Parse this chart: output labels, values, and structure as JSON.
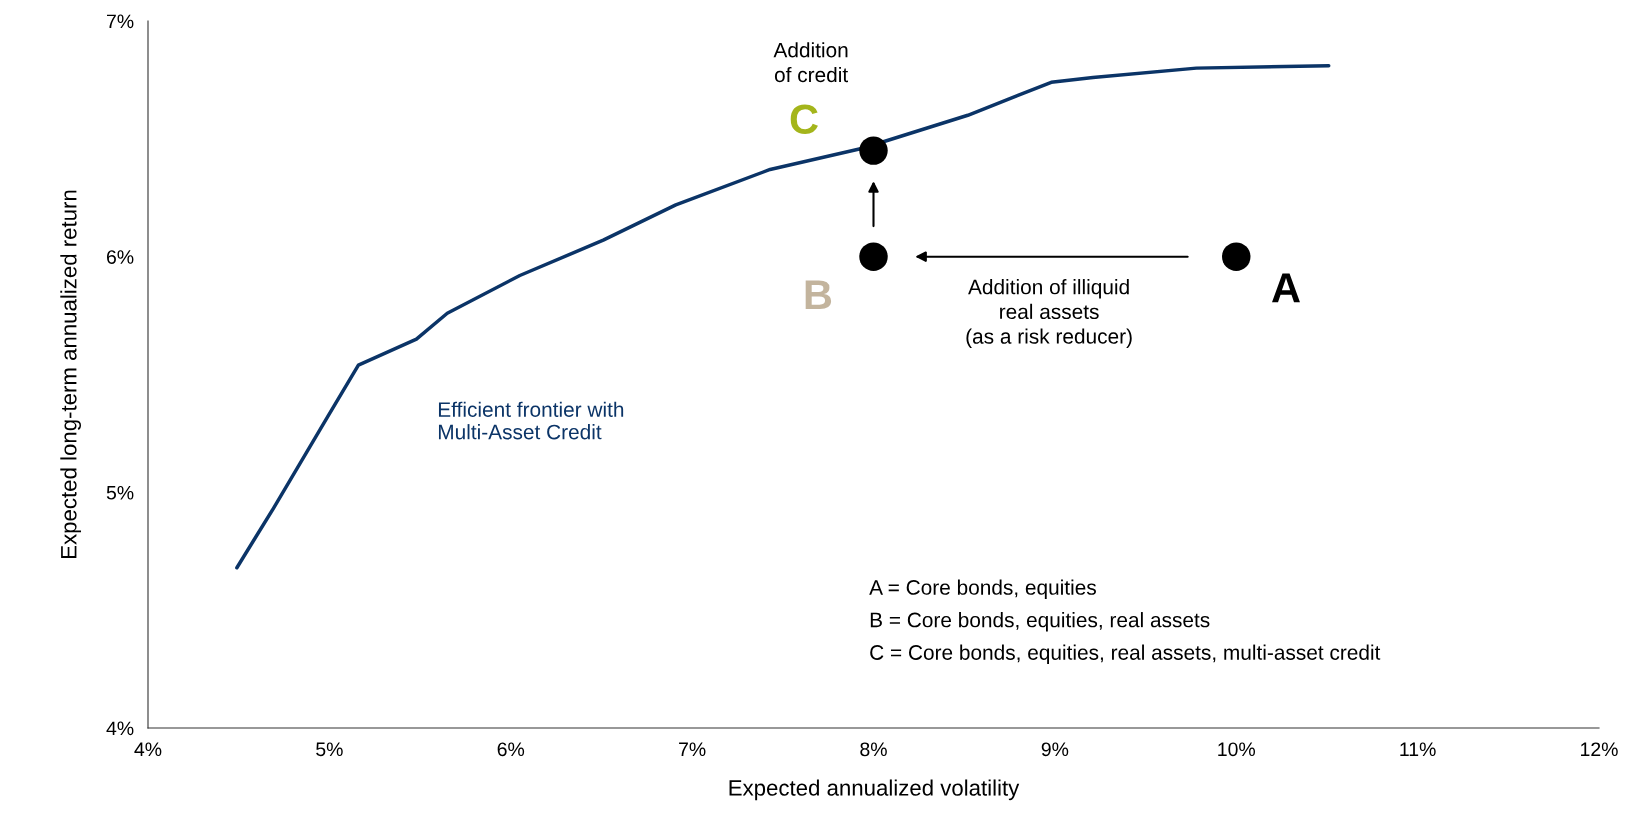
{
  "chart_data": {
    "type": "line",
    "xlabel": "Expected annualized volatility",
    "ylabel": "Expected long-term annualized return",
    "series": [
      {
        "name": "Efficient frontier with\nMulti-Asset Credit",
        "color": "#0b3467",
        "x": [
          4.49,
          4.69,
          4.99,
          5.16,
          5.48,
          5.65,
          6.05,
          6.51,
          6.91,
          7.43,
          7.94,
          8.52,
          8.98,
          9.21,
          9.78,
          10.51
        ],
        "values": [
          4.68,
          4.93,
          5.32,
          5.54,
          5.65,
          5.76,
          5.92,
          6.07,
          6.22,
          6.37,
          6.46,
          6.6,
          6.74,
          6.76,
          6.8,
          6.81
        ]
      },
      {
        "type": "scatter",
        "color": "#000000",
        "x": [
          10,
          8,
          8
        ],
        "values": [
          6,
          6,
          6.45
        ],
        "value_labels": [
          "A",
          "B",
          "C"
        ]
      }
    ],
    "xlim": [
      4,
      12
    ],
    "xticks": [
      {
        "value": 4,
        "label": "4%"
      },
      {
        "value": 5,
        "label": "5%"
      },
      {
        "value": 6,
        "label": "6%"
      },
      {
        "value": 7,
        "label": "7%"
      },
      {
        "value": 8,
        "label": "8%"
      },
      {
        "value": 9,
        "label": "9%"
      },
      {
        "value": 10,
        "label": "10%"
      },
      {
        "value": 11,
        "label": "11%"
      },
      {
        "value": 12,
        "label": "12%"
      }
    ],
    "ylim": [
      4,
      7
    ],
    "yticks": [
      {
        "value": 4,
        "label": "4%"
      },
      {
        "value": 5,
        "label": "5%"
      },
      {
        "value": 6,
        "label": "6%"
      },
      {
        "value": 7,
        "label": "7%"
      }
    ],
    "grid": false,
    "legend": false,
    "annotations": [
      "Addition\nof credit",
      "Addition of illiquid\nreal assets\n(as a risk reducer)",
      "A = Core bonds, equities",
      "B = Core bonds, equities, real assets",
      "C = Core bonds, equities, real assets, multi-asset credit"
    ]
  }
}
